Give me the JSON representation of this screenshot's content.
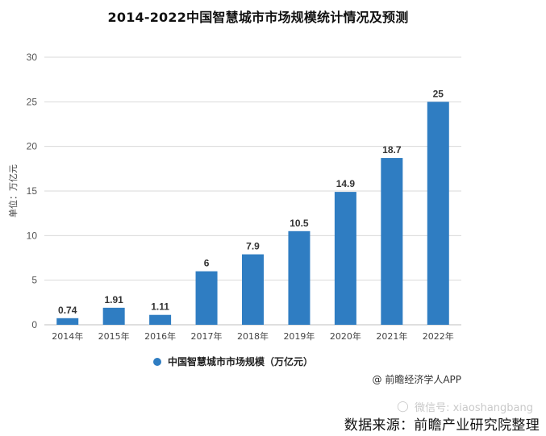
{
  "page": {
    "title": "2014-2022中国智慧城市市场规模统计情况及预测",
    "attribution": "@ 前瞻经济学人APP",
    "wechat": "微信号: xiaoshangbang",
    "source": "数据来源：前瞻产业研究院整理"
  },
  "colors": {
    "bar": "#2f7dc2",
    "grid": "#d9d9d9",
    "axis": "#bfbfbf"
  },
  "chart_data": {
    "type": "bar",
    "title": "2014-2022中国智慧城市市场规模统计情况及预测",
    "ylabel": "单位：万亿元",
    "ylim": [
      0,
      30
    ],
    "yticks": [
      0,
      5,
      10,
      15,
      20,
      25,
      30
    ],
    "categories": [
      "2014年",
      "2015年",
      "2016年",
      "2017年",
      "2018年",
      "2019年",
      "2020年",
      "2021年",
      "2022年"
    ],
    "series": [
      {
        "name": "中国智慧城市市场规模（万亿元）",
        "values": [
          0.74,
          1.91,
          1.11,
          6,
          7.9,
          10.5,
          14.9,
          18.7,
          25
        ],
        "labels": [
          "0.74",
          "1.91",
          "1.11",
          "6",
          "7.9",
          "10.5",
          "14.9",
          "18.7",
          "25"
        ]
      }
    ],
    "legend_position": "bottom",
    "grid": true
  }
}
